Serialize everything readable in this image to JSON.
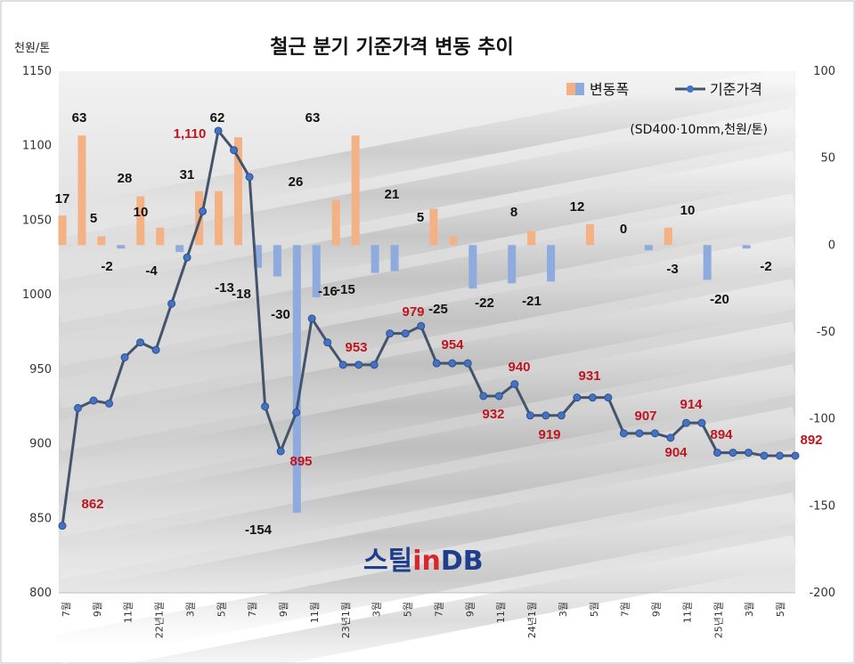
{
  "chart_data": {
    "type": "bar+line",
    "title": "철근 분기 기준가격 변동 추이",
    "y_left_unit": "천원/톤",
    "y_left_lim": [
      800,
      1150
    ],
    "y_left_ticks": [
      "800",
      "850",
      "900",
      "950",
      "1000",
      "1050",
      "1100",
      "1150"
    ],
    "y_right_lim": [
      -200,
      100
    ],
    "y_right_ticks": [
      "-200",
      "-150",
      "-100",
      "-50",
      "0",
      "50",
      "100"
    ],
    "note": "(SD400·10mm,천원/톤)",
    "x_ticks": [
      "7월",
      "9월",
      "11월",
      "22년1월",
      "3월",
      "5월",
      "7월",
      "9월",
      "11월",
      "23년1월",
      "3월",
      "5월",
      "7월",
      "9월",
      "11월",
      "24년1월",
      "3월",
      "5월",
      "7월",
      "9월",
      "11월",
      "25년1월",
      "3월",
      "5월"
    ],
    "series": [
      {
        "name": "변동폭",
        "axis": "right",
        "type": "bar",
        "color_pos": "#f4b183",
        "color_neg": "#8faadc",
        "values": [
          17,
          63,
          5,
          -2,
          28,
          10,
          -4,
          31,
          31,
          62,
          -13,
          -18,
          -154,
          -30,
          26,
          63,
          -16,
          -15,
          0,
          21,
          5,
          -25,
          0,
          -22,
          8,
          -21,
          0,
          12,
          0,
          0,
          -3,
          10,
          0,
          -20,
          0,
          -2,
          0
        ]
      },
      {
        "name": "기준가격",
        "axis": "left",
        "type": "line",
        "color": "#44546a",
        "values": [
          845,
          924,
          929,
          927,
          958,
          968,
          963,
          994,
          1025,
          1056,
          1110,
          1097,
          1079,
          925,
          895,
          921,
          984,
          968,
          953,
          953,
          953,
          974,
          974,
          979,
          954,
          954,
          954,
          932,
          932,
          940,
          919,
          919,
          919,
          931,
          931,
          931,
          907,
          907,
          907,
          904,
          914,
          914,
          894,
          894,
          894,
          892,
          892,
          892
        ]
      }
    ],
    "bar_labels": [
      "17",
      "63",
      "5",
      "-2",
      "28",
      "10",
      "-4",
      "31",
      "62",
      "-13",
      "-18",
      "-154",
      "-30",
      "26",
      "63",
      "-16",
      "-15",
      "21",
      "5",
      "-25",
      "-22",
      "8",
      "-21",
      "12",
      "0",
      "-3",
      "10",
      "-20",
      "-2"
    ],
    "line_labels": [
      "862",
      "1,110",
      "895",
      "953",
      "979",
      "954",
      "932",
      "940",
      "919",
      "931",
      "907",
      "904",
      "914",
      "894",
      "892"
    ],
    "legend": {
      "bar": "변동폭",
      "line": "기준가격",
      "position": "top-right"
    },
    "colors": {
      "pos_bar": "#f4b183",
      "neg_bar": "#8faadc",
      "line": "#44546a",
      "price_label": "#c0141e",
      "marker": "#4472c4"
    }
  },
  "logo": {
    "text_a": "스틸",
    "text_b": "in",
    "text_c": "DB"
  }
}
